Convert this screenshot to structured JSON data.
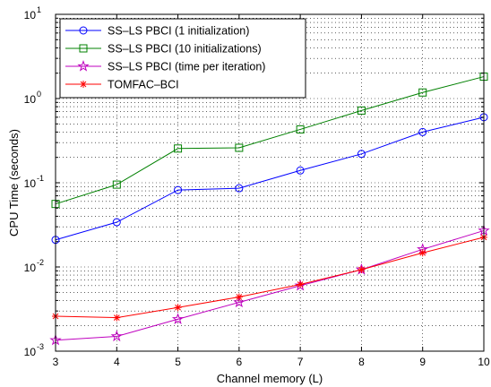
{
  "chart_data": {
    "type": "line",
    "xlabel": "Channel memory (L)",
    "ylabel": "CPU Time (seconds)",
    "x": [
      3,
      4,
      5,
      6,
      7,
      8,
      9,
      10
    ],
    "xlim": [
      3,
      10
    ],
    "ylim": [
      0.001,
      10
    ],
    "yscale": "log",
    "grid": true,
    "legend_position": "top-left",
    "x_tick_labels": [
      "3",
      "4",
      "5",
      "6",
      "7",
      "8",
      "9",
      "10"
    ],
    "y_tick_labels": [
      {
        "base": "10",
        "exp": "-3"
      },
      {
        "base": "10",
        "exp": "-2"
      },
      {
        "base": "10",
        "exp": "-1"
      },
      {
        "base": "10",
        "exp": "0"
      },
      {
        "base": "10",
        "exp": "1"
      }
    ],
    "series": [
      {
        "name": "SS–LS PBCI (1 initialization)",
        "color": "#0000ff",
        "marker": "circle",
        "values": [
          0.021,
          0.034,
          0.082,
          0.086,
          0.14,
          0.22,
          0.4,
          0.6
        ]
      },
      {
        "name": "SS–LS PBCI (10 initializations)",
        "color": "#008000",
        "marker": "square",
        "values": [
          0.056,
          0.095,
          0.255,
          0.26,
          0.43,
          0.72,
          1.18,
          1.82
        ]
      },
      {
        "name": "SS–LS PBCI (time per iteration)",
        "color": "#bf00bf",
        "marker": "star",
        "values": [
          0.00135,
          0.0015,
          0.0024,
          0.0038,
          0.006,
          0.0093,
          0.0162,
          0.027
        ]
      },
      {
        "name": "TOMFAC–BCI",
        "color": "#ff0000",
        "marker": "asterisk",
        "values": [
          0.0026,
          0.0025,
          0.0033,
          0.0044,
          0.0062,
          0.0093,
          0.0147,
          0.0225
        ]
      }
    ]
  }
}
